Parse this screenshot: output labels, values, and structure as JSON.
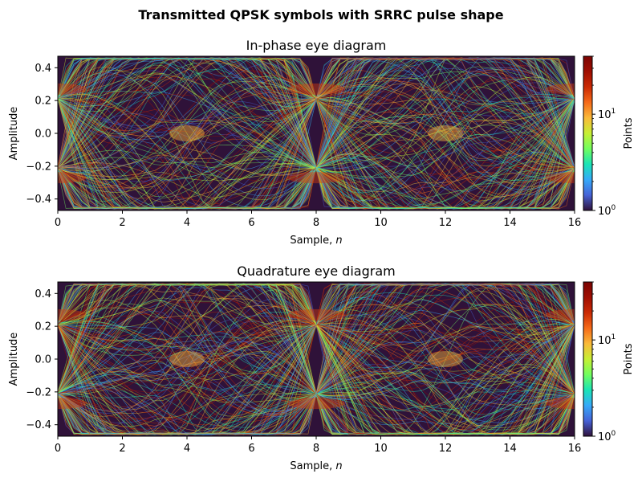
{
  "figure": {
    "title": "Transmitted QPSK symbols with SRRC pulse shape"
  },
  "colors": {
    "background": "#2f1239",
    "colormap": "turbo"
  },
  "chart_data": [
    {
      "type": "heatmap",
      "subtitle": "In-phase eye diagram",
      "xlabel": "Sample, n",
      "ylabel": "Amplitude",
      "xlim": [
        0,
        16
      ],
      "ylim": [
        -0.47,
        0.47
      ],
      "x_ticks": [
        0,
        2,
        4,
        6,
        8,
        10,
        12,
        14,
        16
      ],
      "x_tick_labels": [
        "0",
        "2",
        "4",
        "6",
        "8",
        "10",
        "12",
        "14",
        "16"
      ],
      "y_ticks": [
        -0.4,
        -0.2,
        0.0,
        0.2,
        0.4
      ],
      "y_tick_labels": [
        "−0.4",
        "−0.2",
        "0.0",
        "0.2",
        "0.4"
      ],
      "symbol_period_samples": 8,
      "eye_open_at": [
        0,
        8,
        16
      ],
      "crossing_at": [
        4,
        12
      ],
      "symbol_levels": [
        0.27,
        -0.27
      ],
      "peak_amplitude": 0.46,
      "colorbar": {
        "label": "Points",
        "scale": "log",
        "range": [
          1,
          40
        ],
        "tick_labels": [
          {
            "base": "10",
            "exp": "0"
          },
          {
            "base": "10",
            "exp": "1"
          }
        ]
      }
    },
    {
      "type": "heatmap",
      "subtitle": "Quadrature eye diagram",
      "xlabel": "Sample, n",
      "ylabel": "Amplitude",
      "xlim": [
        0,
        16
      ],
      "ylim": [
        -0.47,
        0.47
      ],
      "x_ticks": [
        0,
        2,
        4,
        6,
        8,
        10,
        12,
        14,
        16
      ],
      "x_tick_labels": [
        "0",
        "2",
        "4",
        "6",
        "8",
        "10",
        "12",
        "14",
        "16"
      ],
      "y_ticks": [
        -0.4,
        -0.2,
        0.0,
        0.2,
        0.4
      ],
      "y_tick_labels": [
        "−0.4",
        "−0.2",
        "0.0",
        "0.2",
        "0.4"
      ],
      "symbol_period_samples": 8,
      "eye_open_at": [
        0,
        8,
        16
      ],
      "crossing_at": [
        4,
        12
      ],
      "symbol_levels": [
        0.27,
        -0.27
      ],
      "peak_amplitude": 0.46,
      "colorbar": {
        "label": "Points",
        "scale": "log",
        "range": [
          1,
          40
        ],
        "tick_labels": [
          {
            "base": "10",
            "exp": "0"
          },
          {
            "base": "10",
            "exp": "1"
          }
        ]
      }
    }
  ]
}
